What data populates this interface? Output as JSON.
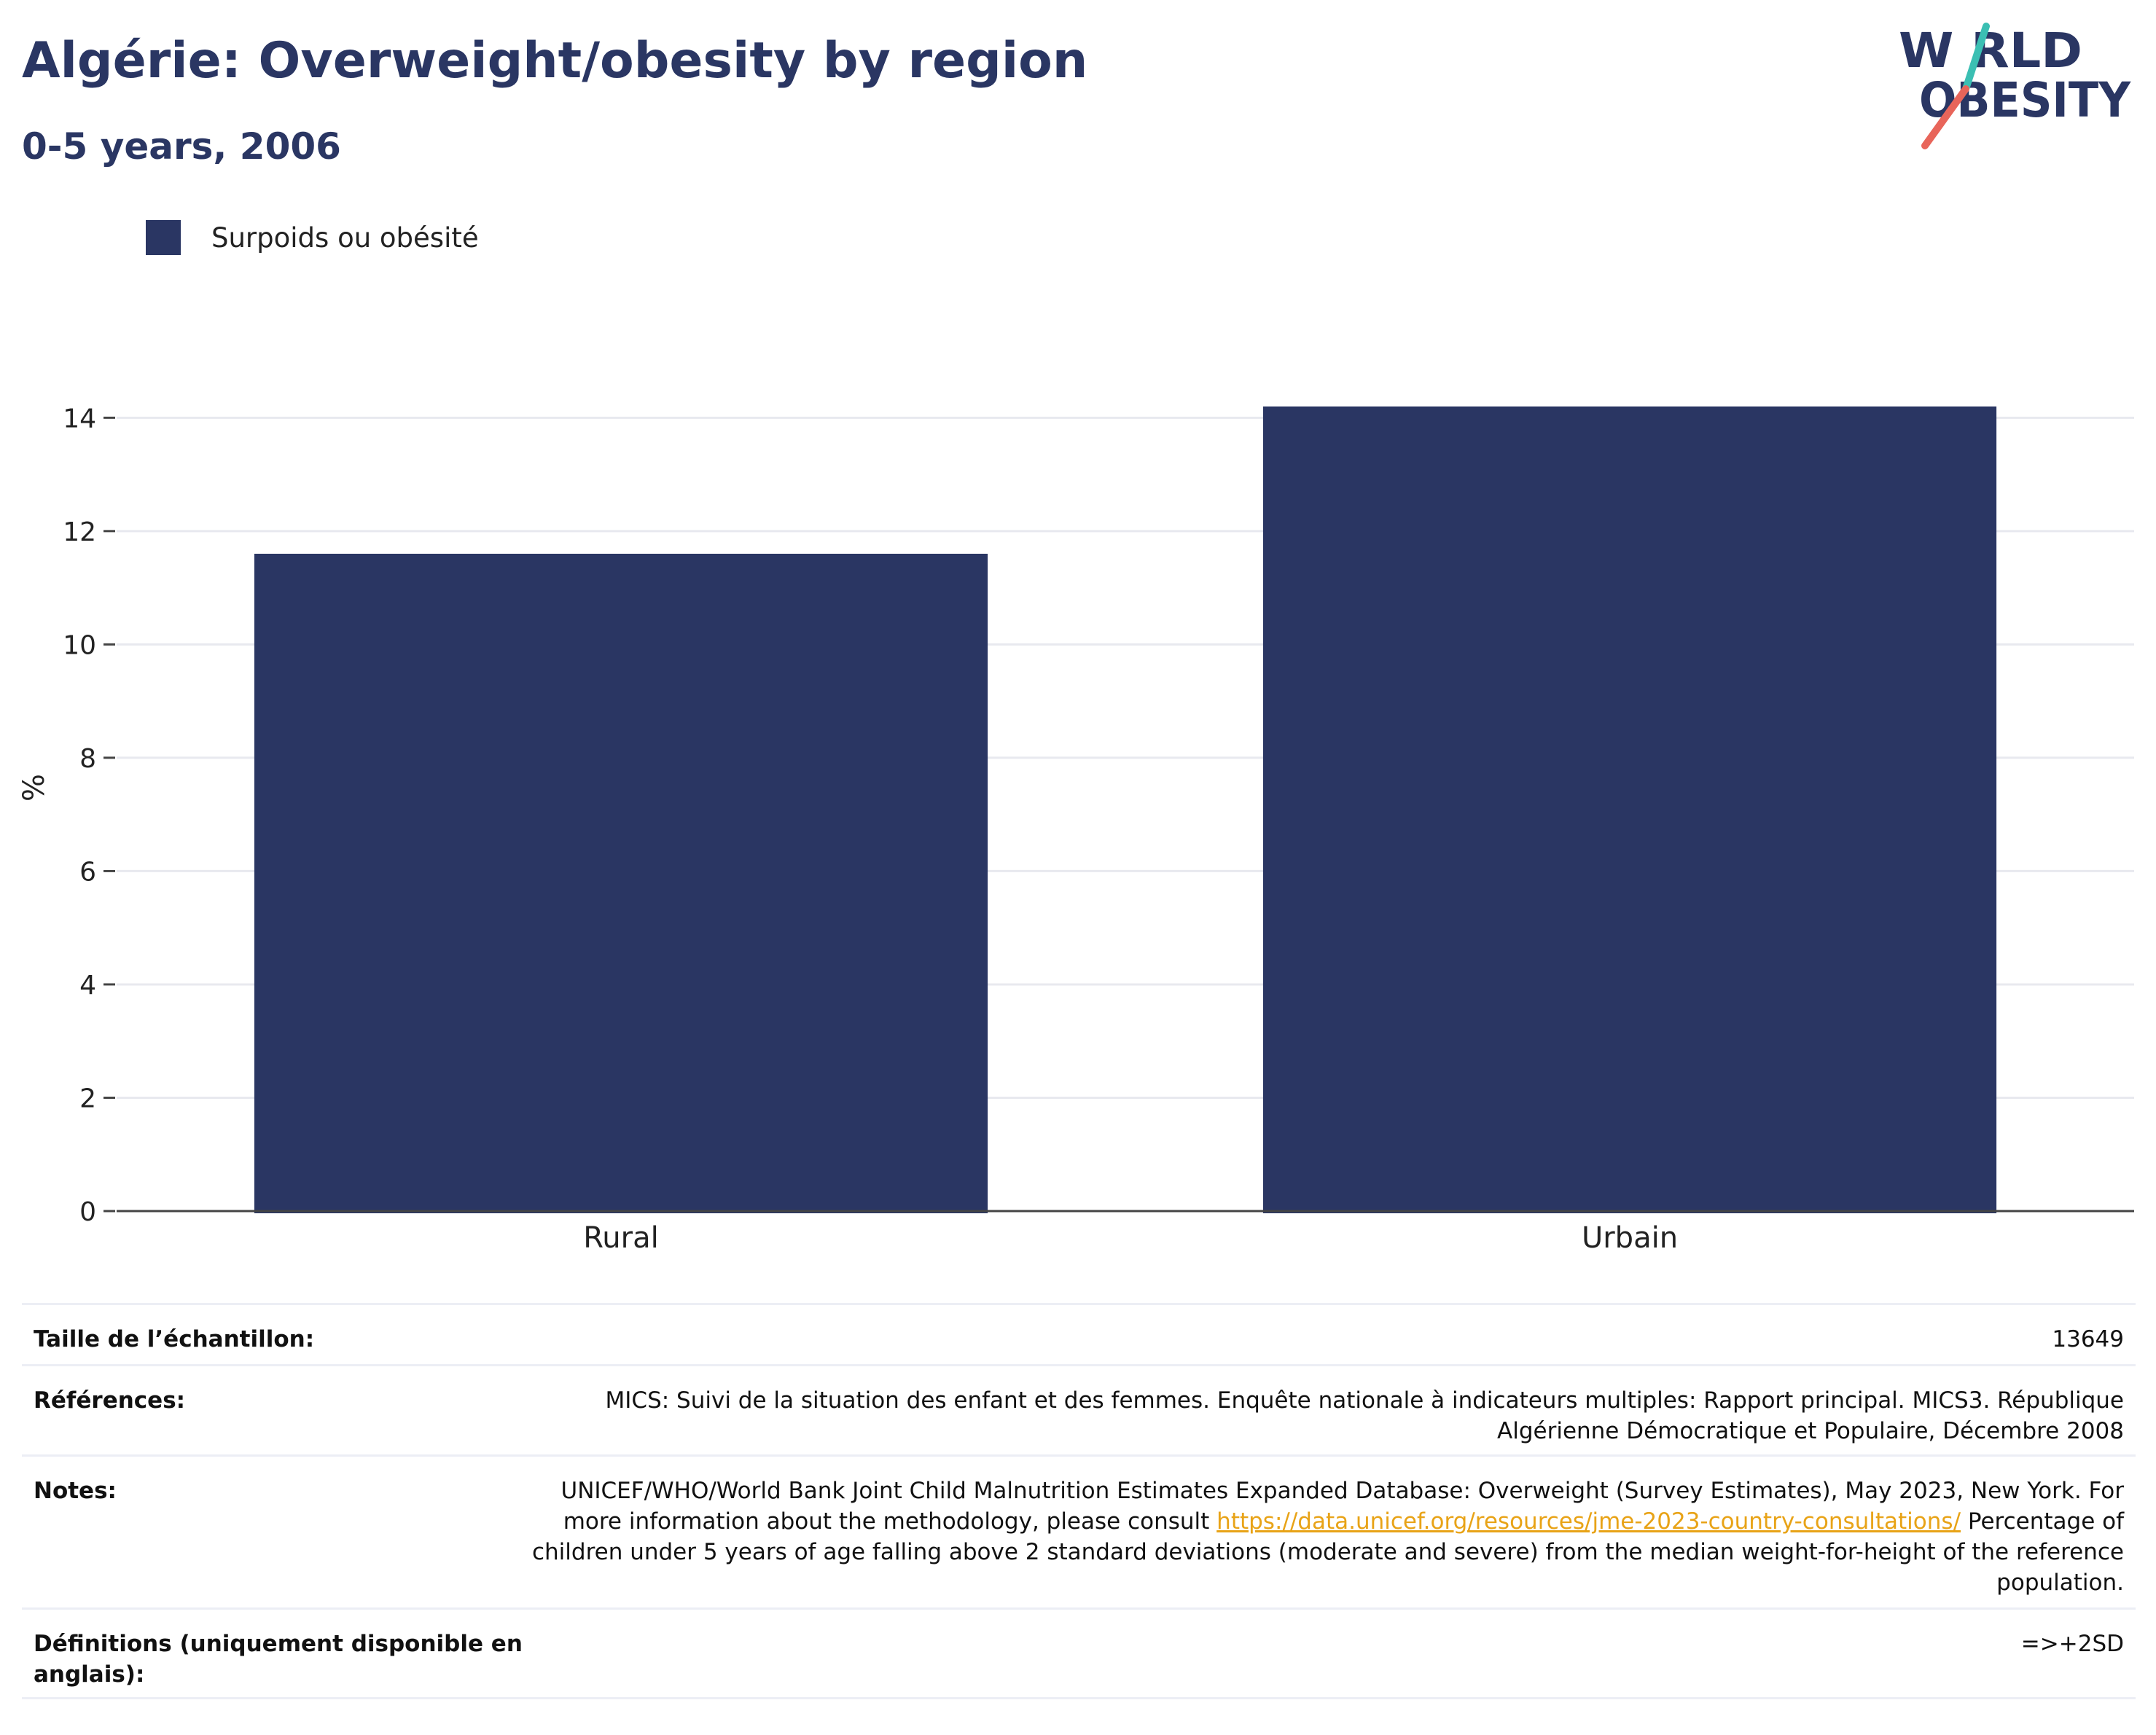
{
  "header": {
    "title": "Algérie: Overweight/obesity by region",
    "subtitle": "0-5 years, 2006"
  },
  "logo": {
    "line1": "W RLD",
    "line2": "OBESITY",
    "alt": "WORLD OBESITY",
    "colors": {
      "text": "#2a3663",
      "slash_top": "#3bbfb3",
      "slash_bottom": "#e8655a"
    }
  },
  "legend": {
    "label": "Surpoids ou obésité",
    "color": "#2a3663"
  },
  "chart_data": {
    "type": "bar",
    "categories": [
      "Rural",
      "Urbain"
    ],
    "series": [
      {
        "name": "Surpoids ou obésité",
        "values": [
          11.6,
          14.2
        ],
        "color": "#2a3663"
      }
    ],
    "ylabel": "%",
    "xlabel": "",
    "ylim": [
      0,
      15.2
    ],
    "yticks": [
      0,
      2,
      4,
      6,
      8,
      10,
      12,
      14
    ],
    "grid": true,
    "legend_position": "top-left"
  },
  "meta": {
    "sample_label": "Taille de l’échantillon:",
    "sample_value": "13649",
    "references_label": "Références:",
    "references_value": "MICS: Suivi de la situation des enfant et des femmes. Enquête nationale à indicateurs multiples: Rapport principal. MICS3. République Algérienne Démocratique et Populaire, Décembre 2008",
    "notes_label": "Notes:",
    "notes_before": "UNICEF/WHO/World Bank Joint Child Malnutrition Estimates Expanded Database: Overweight (Survey Estimates), May 2023, New York. For more information about the methodology, please consult ",
    "notes_link": "https://data.unicef.org/resources/jme-2023-country-consultations/",
    "notes_after": " Percentage of children under 5 years of age falling above 2 standard deviations (moderate and severe) from the median weight-for-height of the reference population.",
    "definitions_label": "Définitions (uniquement disponible en anglais):",
    "definitions_value": "=>+2SD"
  }
}
